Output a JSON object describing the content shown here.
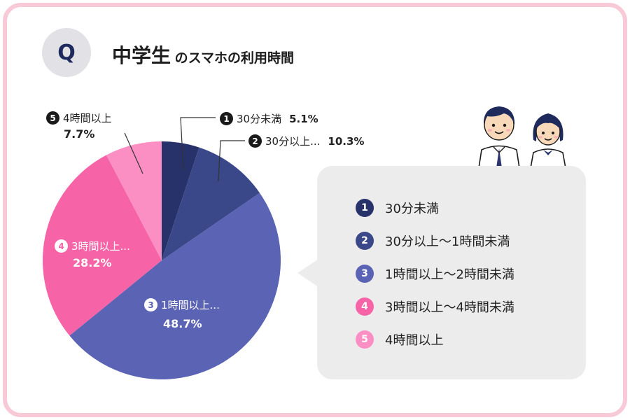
{
  "header": {
    "badge": "Q",
    "title_main": "中学生",
    "title_sub": "のスマホの利用時間"
  },
  "labels": [
    {
      "num": "1",
      "text": "30分未満",
      "pct": "5.1%"
    },
    {
      "num": "2",
      "text": "30分以上...",
      "pct": "10.3%"
    },
    {
      "num": "3",
      "text": "1時間以上...",
      "pct": "48.7%"
    },
    {
      "num": "4",
      "text": "3時間以上...",
      "pct": "28.2%"
    },
    {
      "num": "5",
      "text": "4時間以上",
      "pct": "7.7%"
    }
  ],
  "legend": [
    {
      "num": "1",
      "label": "30分未満"
    },
    {
      "num": "2",
      "label": "30分以上〜1時間未満"
    },
    {
      "num": "3",
      "label": "1時間以上〜2時間未満"
    },
    {
      "num": "4",
      "label": "3時間以上〜4時間未満"
    },
    {
      "num": "5",
      "label": "4時間以上"
    }
  ],
  "colors": {
    "frame": "#f8c9d6",
    "seg1": "#27326b",
    "seg2": "#3a4889",
    "seg3": "#5b63b4",
    "seg4": "#f763a7",
    "seg5": "#fb8fc4",
    "legend_bg": "#ececec"
  },
  "chart_data": {
    "type": "pie",
    "categories": [
      "30分未満",
      "30分以上〜1時間未満",
      "1時間以上〜2時間未満",
      "3時間以上〜4時間未満",
      "4時間以上"
    ],
    "values": [
      5.1,
      10.3,
      48.7,
      28.2,
      7.7
    ],
    "unit": "%",
    "start": "12 o'clock, clockwise",
    "legend": "right"
  }
}
